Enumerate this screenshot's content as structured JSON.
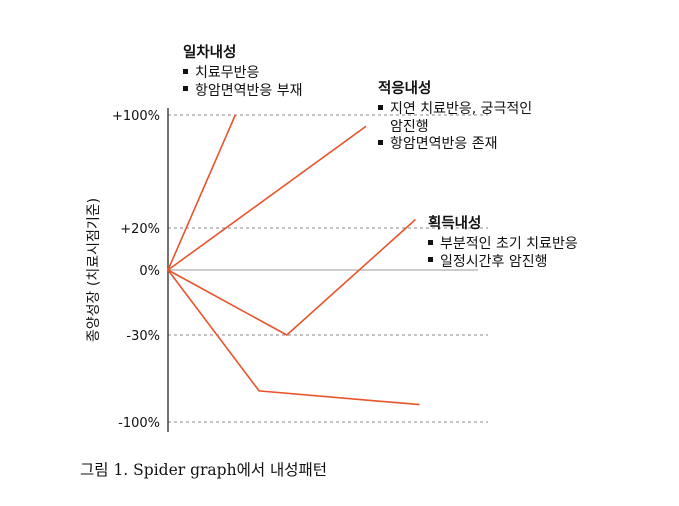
{
  "chart_data": {
    "type": "line",
    "title": "",
    "xlabel": "",
    "ylabel": "종양성장 (치료시점기준)",
    "ylim": [
      -100,
      100
    ],
    "yticks": [
      {
        "label": "+100%",
        "value": 100
      },
      {
        "label": "+20%",
        "value": 20
      },
      {
        "label": "0%",
        "value": 0
      },
      {
        "label": "-30%",
        "value": -30
      },
      {
        "label": "-100%",
        "value": -100
      }
    ],
    "grid": "dashed horizontal at tick levels",
    "series": [
      {
        "points": [
          [
            0,
            0
          ],
          [
            0.34,
            100
          ]
        ],
        "color": "#e8542c"
      },
      {
        "points": [
          [
            0,
            0
          ],
          [
            1.0,
            92
          ]
        ],
        "color": "#e8542c"
      },
      {
        "points": [
          [
            0,
            0
          ],
          [
            0.6,
            -30
          ],
          [
            1.25,
            26
          ]
        ],
        "color": "#e8542c"
      },
      {
        "points": [
          [
            0,
            0
          ],
          [
            0.46,
            -75
          ],
          [
            1.27,
            -86
          ]
        ],
        "color": "#e8542c"
      }
    ],
    "annotations": [
      {
        "title": "일차내성",
        "items": [
          "치료무반응",
          "항암면역반응 부재"
        ]
      },
      {
        "title": "적응내성",
        "items": [
          "지연 치료반응, 궁극적인\n암진행",
          "항암면역반응 존재"
        ]
      },
      {
        "title": "획득내성",
        "items": [
          "부분적인 초기 치료반응",
          "일정시간후 암진행"
        ]
      }
    ]
  },
  "caption": "그림 1. Spider graph에서 내성패턴",
  "colors": {
    "line": "#e8542c",
    "axis": "#444444",
    "grid": "#888888",
    "zero": "#999999"
  }
}
